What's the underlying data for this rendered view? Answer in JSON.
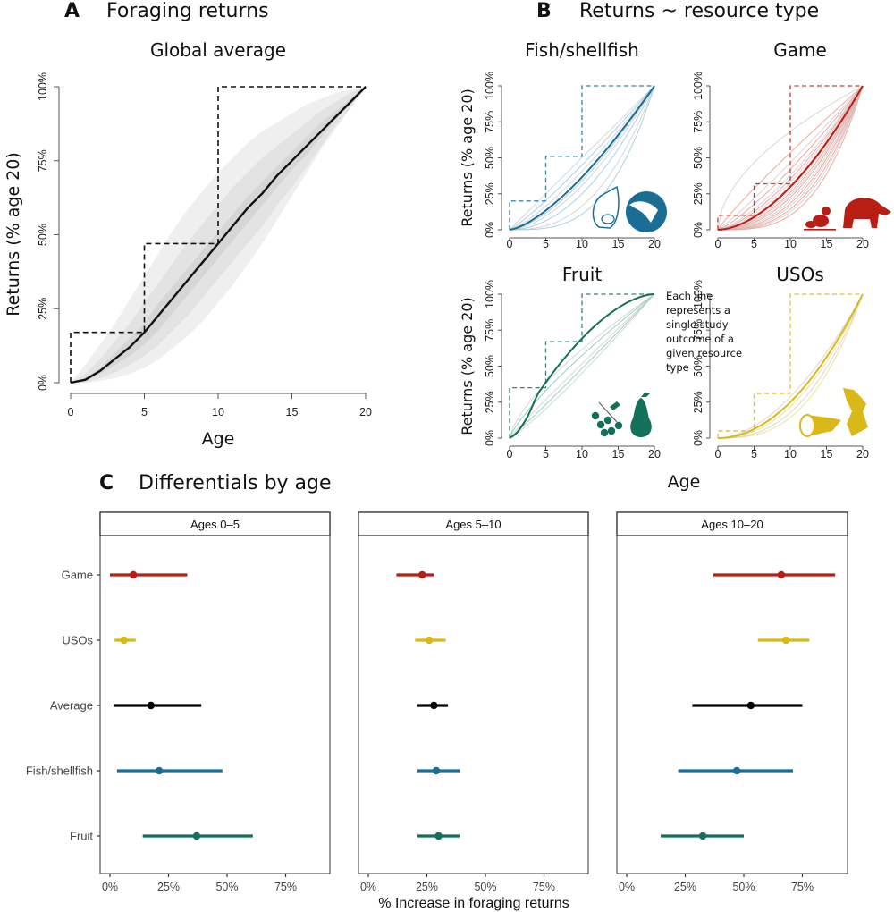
{
  "chart_data": [
    {
      "id": "A",
      "type": "line",
      "panel_letter": "A",
      "panel_title": "Foraging returns",
      "title": "Global average",
      "xlabel": "Age",
      "ylabel": "Returns (% age 20)",
      "xlim": [
        0,
        20
      ],
      "ylim": [
        0,
        100
      ],
      "x_ticks": [
        "0",
        "5",
        "10",
        "15",
        "20"
      ],
      "y_ticks": [
        "0%",
        "25%",
        "50%",
        "75%",
        "100%"
      ],
      "color": "#111111",
      "mean_curve": {
        "x": [
          0,
          1,
          2,
          3,
          4,
          5,
          6,
          7,
          8,
          9,
          10,
          11,
          12,
          13,
          14,
          15,
          16,
          17,
          18,
          19,
          20
        ],
        "y": [
          0,
          1,
          4,
          8,
          12,
          17,
          23,
          29,
          35,
          41,
          47,
          53,
          59,
          64,
          70,
          75,
          80,
          85,
          90,
          95,
          100
        ]
      },
      "step_averages": {
        "x_breaks": [
          0,
          5,
          10,
          20
        ],
        "y": [
          17,
          47,
          100
        ]
      },
      "bands": [
        {
          "name": "outer",
          "color": "#efefef",
          "upper": [
            0,
            6,
            13,
            20,
            28,
            36,
            44,
            52,
            59,
            65,
            71,
            76,
            81,
            85,
            88,
            91,
            94,
            96,
            98,
            99,
            100
          ],
          "lower": [
            0,
            0,
            0.5,
            1.5,
            3,
            5,
            8,
            12,
            16,
            21,
            27,
            33,
            40,
            47,
            55,
            63,
            71,
            79,
            86,
            93,
            100
          ]
        },
        {
          "name": "middle",
          "color": "#e3e3e3",
          "upper": [
            0,
            3,
            8,
            14,
            20,
            27,
            34,
            41,
            48,
            54,
            60,
            66,
            71,
            76,
            80,
            84,
            88,
            92,
            95,
            98,
            100
          ],
          "lower": [
            0,
            0,
            1.5,
            3.5,
            6,
            9,
            13,
            18,
            23,
            29,
            35,
            41,
            47,
            53,
            60,
            66,
            73,
            80,
            87,
            93,
            100
          ]
        },
        {
          "name": "inner",
          "color": "#d6d6d6",
          "upper": [
            0,
            1.5,
            5,
            10,
            15,
            20,
            27,
            33,
            39,
            45,
            51,
            57,
            63,
            68,
            73,
            78,
            83,
            88,
            92,
            96,
            100
          ],
          "lower": [
            0,
            0.5,
            3,
            6,
            9,
            13,
            18,
            24,
            30,
            36,
            42,
            48,
            54,
            60,
            66,
            72,
            77,
            83,
            89,
            95,
            100
          ]
        }
      ]
    },
    {
      "id": "B",
      "type": "line",
      "panel_letter": "B",
      "panel_title": "Returns ~ resource type",
      "xlabel": "Age",
      "ylabel": "Returns (% age 20)",
      "xlim": [
        0,
        20
      ],
      "ylim": [
        0,
        100
      ],
      "x_ticks": [
        "0",
        "5",
        "10",
        "15",
        "20"
      ],
      "y_ticks": [
        "0%",
        "25%",
        "50%",
        "75%",
        "100%"
      ],
      "note": [
        "Each line",
        "represents a",
        "single study",
        "outcome of a",
        "given resource",
        "type"
      ],
      "subplots": [
        {
          "title": "Fish/shellfish",
          "color": "#1a6e96",
          "light": "#9cc8dc",
          "steps": [
            20,
            51,
            100
          ],
          "mean_exp": 1.45,
          "study_exps": [
            1.0,
            1.15,
            1.3,
            1.55,
            1.7,
            2.0,
            2.6,
            3.2
          ],
          "icons": [
            "shell-icon",
            "fish-icon"
          ],
          "show_ylabel": true
        },
        {
          "title": "Game",
          "color": "#b81e14",
          "light": "#ec9a90",
          "steps": [
            10,
            32,
            100
          ],
          "mean_exp": 1.75,
          "study_exps": [
            0.55,
            0.9,
            1.1,
            1.25,
            1.4,
            1.5,
            1.6,
            1.7,
            1.85,
            1.95,
            2.05,
            2.15,
            2.3,
            2.45,
            2.6,
            2.8,
            3.0,
            3.3
          ],
          "icons": [
            "chick-icon",
            "tapir-icon"
          ],
          "show_ylabel": false
        },
        {
          "title": "Fruit",
          "color": "#13705a",
          "light": "#8cc7b4",
          "steps": [
            35,
            67,
            100
          ],
          "mean_exp": 0.9,
          "study_exps": [
            0.7,
            0.8,
            0.95,
            1.05,
            1.15
          ],
          "icons": [
            "berries-icon",
            "pear-icon"
          ],
          "show_ylabel": true
        },
        {
          "title": "USOs",
          "color": "#d8b918",
          "light": "#eedc7c",
          "steps": [
            5,
            31,
            100
          ],
          "mean_exp": 2.0,
          "study_exps": [
            1.8,
            2.2,
            2.5,
            2.8
          ],
          "icons": [
            "tuber-icon",
            "root-icon"
          ],
          "show_ylabel": false
        }
      ]
    },
    {
      "id": "C",
      "type": "scatter",
      "panel_letter": "C",
      "panel_title": "Differentials by age",
      "xlabel": "% Increase in foraging returns",
      "xlim": [
        -3,
        95
      ],
      "x_ticks": [
        "0%",
        "25%",
        "50%",
        "75%"
      ],
      "x_tick_values": [
        0,
        25,
        50,
        75
      ],
      "categories": [
        "Game",
        "USOs",
        "Average",
        "Fish/shellfish",
        "Fruit"
      ],
      "colors": {
        "Game": "#b81e14",
        "USOs": "#d8b918",
        "Average": "#000000",
        "Fish/shellfish": "#1a6e96",
        "Fruit": "#13705a"
      },
      "facets": [
        {
          "label": "Ages 0–5",
          "estimates": [
            {
              "category": "Game",
              "low": 0,
              "mid": 10,
              "high": 33
            },
            {
              "category": "USOs",
              "low": 2,
              "mid": 6,
              "high": 11
            },
            {
              "category": "Average",
              "low": 1.5,
              "mid": 17.5,
              "high": 39
            },
            {
              "category": "Fish/shellfish",
              "low": 3,
              "mid": 21,
              "high": 48
            },
            {
              "category": "Fruit",
              "low": 14,
              "mid": 37,
              "high": 61
            }
          ]
        },
        {
          "label": "Ages 5–10",
          "estimates": [
            {
              "category": "Game",
              "low": 12,
              "mid": 23,
              "high": 28
            },
            {
              "category": "USOs",
              "low": 20,
              "mid": 26,
              "high": 33
            },
            {
              "category": "Average",
              "low": 21,
              "mid": 28,
              "high": 34
            },
            {
              "category": "Fish/shellfish",
              "low": 21,
              "mid": 29,
              "high": 39
            },
            {
              "category": "Fruit",
              "low": 21,
              "mid": 30,
              "high": 39
            }
          ]
        },
        {
          "label": "Ages 10–20",
          "estimates": [
            {
              "category": "Game",
              "low": 37,
              "mid": 66,
              "high": 89
            },
            {
              "category": "USOs",
              "low": 56,
              "mid": 68,
              "high": 78
            },
            {
              "category": "Average",
              "low": 28,
              "mid": 53,
              "high": 75
            },
            {
              "category": "Fish/shellfish",
              "low": 22,
              "mid": 47,
              "high": 71
            },
            {
              "category": "Fruit",
              "low": 14.5,
              "mid": 32.5,
              "high": 50
            }
          ]
        }
      ]
    }
  ]
}
